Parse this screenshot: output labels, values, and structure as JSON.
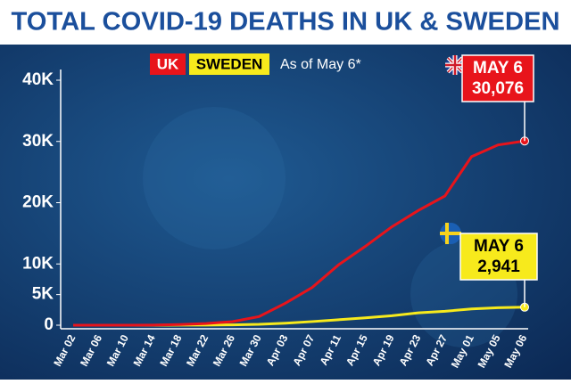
{
  "chart_data": {
    "type": "line",
    "title": "TOTAL COVID-19 DEATHS IN UK & SWEDEN",
    "subtitle": "As of May 6*",
    "categories": [
      "Mar 02",
      "Mar 06",
      "Mar 10",
      "Mar 14",
      "Mar 18",
      "Mar 22",
      "Mar 26",
      "Mar 30",
      "Apr 03",
      "Apr 07",
      "Apr 11",
      "Apr 15",
      "Apr 19",
      "Apr 23",
      "Apr 27",
      "May 01",
      "May 05",
      "May 06"
    ],
    "series": [
      {
        "name": "UK",
        "color": "#e8141b",
        "values": [
          0,
          2,
          6,
          21,
          104,
          281,
          578,
          1408,
          3605,
          6159,
          9875,
          12868,
          16060,
          18738,
          21092,
          27510,
          29427,
          30076
        ],
        "value_labels": [
          null,
          null,
          null,
          null,
          null,
          null,
          null,
          null,
          null,
          null,
          null,
          null,
          null,
          null,
          null,
          null,
          null,
          "30,076"
        ],
        "callout_date": "MAY 6"
      },
      {
        "name": "SWEDEN",
        "color": "#f7ea1c",
        "values": [
          0,
          0,
          0,
          1,
          10,
          21,
          62,
          146,
          333,
          591,
          899,
          1203,
          1540,
          2021,
          2274,
          2653,
          2854,
          2941
        ],
        "value_labels": [
          null,
          null,
          null,
          null,
          null,
          null,
          null,
          null,
          null,
          null,
          null,
          null,
          null,
          null,
          null,
          null,
          null,
          "2,941"
        ],
        "callout_date": "MAY 6"
      }
    ],
    "ylim": [
      0,
      40000
    ],
    "yticks": [
      0,
      {
        "value": 5000,
        "label": "5K"
      },
      {
        "value": 10000,
        "label": "10K"
      },
      {
        "value": 20000,
        "label": "20K"
      },
      {
        "value": 30000,
        "label": "30K"
      },
      {
        "value": 40000,
        "label": "40K"
      }
    ]
  }
}
